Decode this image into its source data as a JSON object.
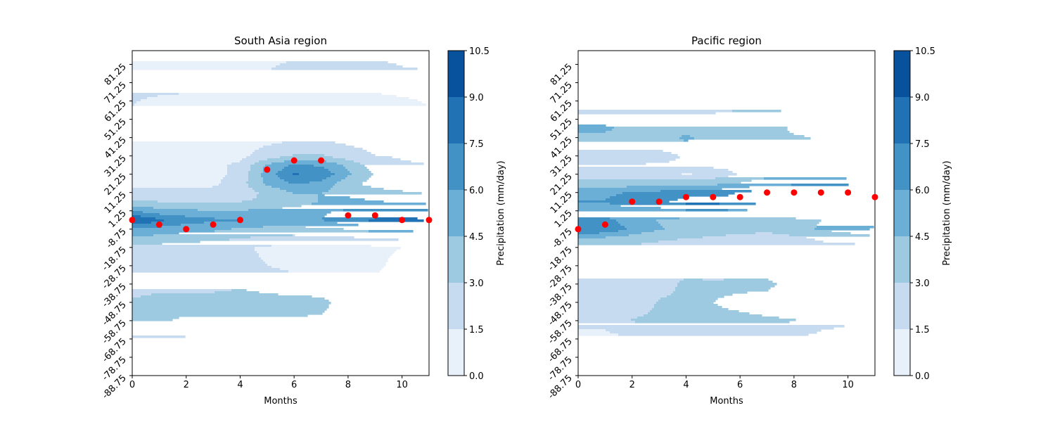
{
  "chart_data": [
    {
      "type": "contour",
      "title": "South Asia region",
      "xlabel": "Months",
      "ylabel": "",
      "xlim": [
        0,
        11
      ],
      "ylim": [
        -88.75,
        88.75
      ],
      "x_ticks": [
        0,
        2,
        4,
        6,
        8,
        10
      ],
      "y_ticks": [
        -88.75,
        -78.75,
        -68.75,
        -58.75,
        -48.75,
        -38.75,
        -28.75,
        -18.75,
        -8.75,
        1.25,
        11.25,
        21.25,
        31.25,
        41.25,
        51.25,
        61.25,
        71.25,
        81.25
      ],
      "colorbar": {
        "label": "Precipitation (mm/day)",
        "levels": [
          0.0,
          1.5,
          3.0,
          4.5,
          6.0,
          7.5,
          9.0,
          10.5
        ],
        "colors": [
          "#e8f1fa",
          "#c6dbef",
          "#9ecae1",
          "#6baed6",
          "#4292c6",
          "#2171b5",
          "#08519c"
        ]
      },
      "field": {
        "lat": [
          -88.75,
          -78.75,
          -68.75,
          -58.75,
          -48.75,
          -38.75,
          -28.75,
          -18.75,
          -8.75,
          -3.75,
          1.25,
          6.25,
          11.25,
          16.25,
          21.25,
          26.25,
          31.25,
          41.25,
          51.25,
          61.25,
          71.25,
          81.25,
          88.75
        ],
        "values": [
          [
            0.5,
            0.5,
            0.5,
            0.5,
            0.5,
            0.5,
            0.5,
            0.5,
            0.5,
            0.5,
            0.5,
            0.5
          ],
          [
            0.8,
            0.8,
            0.8,
            0.8,
            0.8,
            0.8,
            0.8,
            0.8,
            0.8,
            0.8,
            0.8,
            0.8
          ],
          [
            1.3,
            1.3,
            1.3,
            1.3,
            1.3,
            1.3,
            1.3,
            1.3,
            1.3,
            1.3,
            1.3,
            1.3
          ],
          [
            3.1,
            3.1,
            2.8,
            2.8,
            2.8,
            2.8,
            2.8,
            2.8,
            2.3,
            2.3,
            2.3,
            2.3
          ],
          [
            3.2,
            3.6,
            3.6,
            3.6,
            3.6,
            3.6,
            3.6,
            3.4,
            2.2,
            2.2,
            2.2,
            2.2
          ],
          [
            2.2,
            2.5,
            2.5,
            2.5,
            2.8,
            2.4,
            2.0,
            2.0,
            2.0,
            2.0,
            2.0,
            2.0
          ],
          [
            2.0,
            2.0,
            2.0,
            2.0,
            1.8,
            1.5,
            1.2,
            1.2,
            1.2,
            1.2,
            2.0,
            2.0
          ],
          [
            2.4,
            2.4,
            2.2,
            2.0,
            1.7,
            1.3,
            1.0,
            1.0,
            1.0,
            1.2,
            1.5,
            2.0
          ],
          [
            5.8,
            5.5,
            5.0,
            4.8,
            4.3,
            4.0,
            4.0,
            4.2,
            4.5,
            5.0,
            5.0,
            4.6
          ],
          [
            9.2,
            7.8,
            6.8,
            6.3,
            6.1,
            5.8,
            5.5,
            6.0,
            7.2,
            7.8,
            8.0,
            7.6
          ],
          [
            6.0,
            5.0,
            4.7,
            4.6,
            4.6,
            4.8,
            5.2,
            5.8,
            6.2,
            6.2,
            6.3,
            6.2
          ],
          [
            3.2,
            3.0,
            3.0,
            3.0,
            3.0,
            3.2,
            3.6,
            4.6,
            5.0,
            4.6,
            4.3,
            4.0
          ],
          [
            2.0,
            2.0,
            2.0,
            2.0,
            2.3,
            3.3,
            4.6,
            4.5,
            4.0,
            3.6,
            3.2,
            2.8
          ],
          [
            1.0,
            1.0,
            1.0,
            1.2,
            2.4,
            4.8,
            6.2,
            5.6,
            3.4,
            2.4,
            2.0,
            1.8
          ],
          [
            1.0,
            1.0,
            1.0,
            1.0,
            2.0,
            5.2,
            7.6,
            7.2,
            4.8,
            2.8,
            2.0,
            1.8
          ],
          [
            1.0,
            1.0,
            1.0,
            1.3,
            1.7,
            4.8,
            6.2,
            5.8,
            4.2,
            2.2,
            1.6,
            1.5
          ],
          [
            1.2,
            1.0,
            1.0,
            1.0,
            1.2,
            2.0,
            3.2,
            3.2,
            2.0,
            1.5,
            1.4,
            1.4
          ],
          [
            1.1,
            1.1,
            1.1,
            1.1,
            1.1,
            1.1,
            1.1,
            1.1,
            1.1,
            1.1,
            1.1,
            1.1
          ],
          [
            1.2,
            1.2,
            1.2,
            1.2,
            1.2,
            1.2,
            1.2,
            1.2,
            1.2,
            1.2,
            1.2,
            1.2
          ],
          [
            1.6,
            1.2,
            1.0,
            1.0,
            1.0,
            1.0,
            1.0,
            1.0,
            1.0,
            1.0,
            1.3,
            1.6
          ],
          [
            2.2,
            2.2,
            2.2,
            2.2,
            2.2,
            2.2,
            2.2,
            2.2,
            2.2,
            2.2,
            2.2,
            2.2
          ],
          [
            1.2,
            1.2,
            1.2,
            1.2,
            1.2,
            1.2,
            1.8,
            1.8,
            1.8,
            1.8,
            1.4,
            1.2
          ],
          [
            0.8,
            0.8,
            0.8,
            0.8,
            0.8,
            0.8,
            0.8,
            0.8,
            0.8,
            0.8,
            0.8,
            0.8
          ]
        ]
      },
      "max_points": {
        "x": [
          0,
          1,
          2,
          3,
          4,
          5,
          6,
          7,
          8,
          9,
          10,
          11
        ],
        "y": [
          -3.75,
          -6.25,
          -8.75,
          -6.25,
          -3.75,
          23.75,
          28.75,
          28.75,
          -1.25,
          -1.25,
          -3.75,
          -3.75
        ],
        "color": "#ff0000"
      }
    },
    {
      "type": "contour",
      "title": "Pacific region",
      "xlabel": "Months",
      "ylabel": "",
      "xlim": [
        0,
        11
      ],
      "ylim": [
        -88.75,
        88.75
      ],
      "x_ticks": [
        0,
        2,
        4,
        6,
        8,
        10
      ],
      "y_ticks": [
        -88.75,
        -78.75,
        -68.75,
        -58.75,
        -48.75,
        -38.75,
        -28.75,
        -18.75,
        -8.75,
        1.25,
        11.25,
        21.25,
        31.25,
        41.25,
        51.25,
        61.25,
        71.25,
        81.25
      ],
      "colorbar": {
        "label": "Precipitation (mm/day)",
        "levels": [
          0.0,
          1.5,
          3.0,
          4.5,
          6.0,
          7.5,
          9.0,
          10.5
        ],
        "colors": [
          "#e8f1fa",
          "#c6dbef",
          "#9ecae1",
          "#6baed6",
          "#4292c6",
          "#2171b5",
          "#08519c"
        ]
      },
      "field": {
        "lat": [
          -88.75,
          -78.75,
          -68.75,
          -58.75,
          -48.75,
          -38.75,
          -28.75,
          -18.75,
          -13.75,
          -8.75,
          -3.75,
          1.25,
          6.25,
          11.25,
          16.25,
          21.25,
          26.25,
          31.25,
          36.25,
          41.25,
          46.25,
          51.25,
          61.25,
          71.25,
          81.25,
          88.75
        ],
        "values": [
          [
            0.5,
            0.5,
            0.5,
            0.5,
            0.5,
            0.5,
            0.5,
            0.5,
            0.5,
            0.5,
            0.5,
            0.5
          ],
          [
            0.8,
            0.8,
            0.8,
            0.8,
            0.8,
            0.8,
            0.8,
            0.8,
            0.8,
            0.8,
            0.8,
            0.8
          ],
          [
            1.2,
            1.2,
            1.2,
            1.2,
            1.2,
            1.2,
            1.2,
            1.2,
            1.2,
            1.2,
            1.2,
            1.2
          ],
          [
            1.8,
            1.8,
            3.1,
            3.3,
            3.3,
            3.3,
            3.3,
            3.2,
            3.1,
            1.8,
            1.6,
            1.6
          ],
          [
            1.8,
            1.8,
            2.2,
            3.1,
            3.1,
            3.0,
            2.7,
            2.4,
            2.0,
            1.8,
            1.6,
            1.6
          ],
          [
            1.8,
            1.8,
            2.2,
            2.6,
            3.2,
            3.2,
            3.3,
            3.3,
            2.4,
            1.8,
            1.6,
            1.6
          ],
          [
            2.5,
            2.5,
            2.5,
            2.5,
            2.5,
            2.3,
            2.2,
            2.2,
            2.3,
            2.5,
            2.5,
            2.5
          ],
          [
            2.6,
            2.6,
            2.6,
            2.6,
            2.6,
            2.4,
            2.2,
            2.2,
            2.4,
            2.6,
            2.6,
            2.6
          ],
          [
            4.8,
            4.2,
            3.8,
            3.2,
            3.0,
            2.8,
            2.2,
            1.4,
            2.6,
            3.2,
            3.5,
            3.8
          ],
          [
            7.0,
            7.4,
            5.6,
            4.6,
            4.2,
            4.0,
            4.0,
            4.0,
            4.2,
            4.6,
            5.2,
            6.2
          ],
          [
            6.5,
            6.6,
            5.0,
            4.4,
            4.2,
            4.0,
            4.0,
            4.0,
            4.2,
            4.5,
            5.0,
            5.6
          ],
          [
            4.6,
            4.6,
            5.2,
            5.4,
            5.8,
            5.8,
            5.8,
            5.8,
            5.8,
            5.8,
            5.8,
            5.8
          ],
          [
            6.1,
            6.1,
            7.4,
            7.2,
            8.0,
            8.0,
            7.8,
            8.1,
            8.1,
            8.1,
            8.1,
            8.0
          ],
          [
            5.5,
            5.5,
            6.2,
            6.4,
            7.0,
            7.0,
            7.6,
            8.6,
            8.6,
            8.6,
            8.6,
            8.2
          ],
          [
            3.6,
            3.6,
            3.6,
            3.8,
            3.8,
            4.0,
            4.6,
            5.4,
            5.6,
            5.6,
            5.6,
            5.2
          ],
          [
            2.4,
            2.4,
            2.4,
            2.2,
            1.3,
            2.0,
            3.2,
            4.0,
            4.0,
            4.0,
            3.6,
            3.2
          ],
          [
            3.1,
            3.1,
            3.1,
            3.1,
            3.2,
            3.4,
            3.4,
            3.4,
            3.4,
            3.4,
            3.3,
            3.3
          ],
          [
            2.4,
            2.4,
            2.4,
            2.6,
            3.1,
            3.3,
            3.6,
            3.8,
            3.4,
            3.3,
            3.1,
            3.1
          ],
          [
            3.2,
            3.2,
            3.2,
            3.2,
            3.6,
            3.3,
            3.2,
            3.2,
            3.4,
            3.6,
            3.6,
            3.6
          ],
          [
            3.5,
            3.5,
            3.3,
            3.2,
            5.0,
            3.4,
            3.3,
            3.3,
            4.2,
            4.8,
            4.8,
            4.8
          ],
          [
            5.2,
            5.2,
            3.4,
            3.3,
            3.3,
            3.4,
            3.6,
            3.6,
            5.0,
            5.0,
            5.0,
            5.0
          ],
          [
            3.2,
            3.2,
            3.2,
            3.2,
            3.2,
            3.2,
            3.4,
            3.4,
            3.3,
            3.3,
            3.3,
            3.3
          ],
          [
            2.6,
            2.6,
            2.6,
            2.6,
            2.6,
            2.6,
            2.6,
            2.6,
            2.6,
            2.6,
            2.6,
            2.6
          ],
          [
            1.6,
            1.6,
            1.6,
            1.6,
            1.6,
            1.6,
            1.6,
            1.6,
            1.6,
            1.6,
            1.6,
            1.6
          ],
          [
            1.0,
            1.0,
            1.0,
            1.0,
            1.0,
            1.0,
            1.0,
            1.0,
            1.0,
            1.0,
            1.0,
            1.0
          ],
          [
            0.6,
            0.6,
            0.6,
            0.6,
            0.6,
            0.6,
            0.6,
            0.6,
            0.6,
            0.6,
            0.6,
            0.6
          ]
        ]
      },
      "max_points": {
        "x": [
          0,
          1,
          2,
          3,
          4,
          5,
          6,
          7,
          8,
          9,
          10,
          11
        ],
        "y": [
          -8.75,
          -6.25,
          6.25,
          6.25,
          8.75,
          8.75,
          8.75,
          11.25,
          11.25,
          11.25,
          11.25,
          8.75
        ],
        "color": "#ff0000"
      }
    }
  ]
}
